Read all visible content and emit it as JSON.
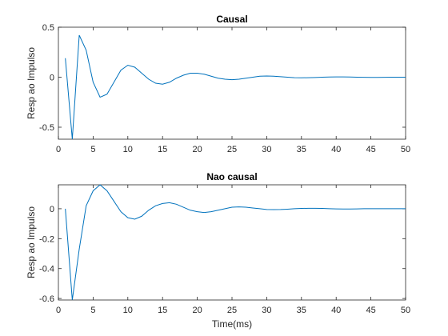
{
  "figure": {
    "background": "#ffffff",
    "line_color": "#0072BD",
    "axis_color": "#262626"
  },
  "chart_data": [
    {
      "type": "line",
      "title": "Causal",
      "xlabel": "",
      "ylabel": "Resp ao Impulso",
      "xlim": [
        0,
        50
      ],
      "ylim": [
        -0.62,
        0.5
      ],
      "xticks": [
        0,
        5,
        10,
        15,
        20,
        25,
        30,
        35,
        40,
        45,
        50
      ],
      "yticks": [
        -0.5,
        0,
        0.5
      ],
      "ytick_labels": [
        "-0.5",
        "0",
        "0.5"
      ],
      "grid": false,
      "series": [
        {
          "x": [
            1,
            2,
            3,
            4,
            5,
            6,
            7,
            8,
            9,
            10,
            11,
            12,
            13,
            14,
            15,
            16,
            17,
            18,
            19,
            20,
            21,
            22,
            23,
            24,
            25,
            26,
            27,
            28,
            29,
            30,
            31,
            32,
            33,
            34,
            35,
            36,
            37,
            38,
            39,
            40,
            41,
            42,
            43,
            44,
            45,
            46,
            47,
            48,
            49,
            50
          ],
          "y": [
            0.19,
            -0.62,
            0.42,
            0.27,
            -0.05,
            -0.2,
            -0.17,
            -0.05,
            0.07,
            0.12,
            0.1,
            0.04,
            -0.02,
            -0.06,
            -0.07,
            -0.05,
            -0.01,
            0.02,
            0.04,
            0.04,
            0.03,
            0.01,
            -0.01,
            -0.02,
            -0.025,
            -0.02,
            -0.01,
            0.0,
            0.01,
            0.012,
            0.01,
            0.005,
            0.0,
            -0.005,
            -0.006,
            -0.005,
            -0.003,
            0.0,
            0.002,
            0.003,
            0.003,
            0.002,
            0.0,
            -0.001,
            -0.002,
            -0.002,
            -0.001,
            0.0,
            0.0,
            0.0
          ]
        }
      ]
    },
    {
      "type": "line",
      "title": "Nao causal",
      "xlabel": "Time(ms)",
      "ylabel": "Resp ao Impulso",
      "xlim": [
        0,
        50
      ],
      "ylim": [
        -0.61,
        0.16
      ],
      "xticks": [
        0,
        5,
        10,
        15,
        20,
        25,
        30,
        35,
        40,
        45,
        50
      ],
      "yticks": [
        -0.6,
        -0.4,
        -0.2,
        0
      ],
      "ytick_labels": [
        "-0.6",
        "-0.4",
        "-0.2",
        "0"
      ],
      "grid": false,
      "series": [
        {
          "x": [
            1,
            2,
            3,
            4,
            5,
            6,
            7,
            8,
            9,
            10,
            11,
            12,
            13,
            14,
            15,
            16,
            17,
            18,
            19,
            20,
            21,
            22,
            23,
            24,
            25,
            26,
            27,
            28,
            29,
            30,
            31,
            32,
            33,
            34,
            35,
            36,
            37,
            38,
            39,
            40,
            41,
            42,
            43,
            44,
            45,
            46,
            47,
            48,
            49,
            50
          ],
          "y": [
            0.0,
            -0.61,
            -0.27,
            0.02,
            0.12,
            0.16,
            0.12,
            0.05,
            -0.02,
            -0.06,
            -0.07,
            -0.05,
            -0.01,
            0.02,
            0.035,
            0.04,
            0.03,
            0.01,
            -0.01,
            -0.02,
            -0.025,
            -0.02,
            -0.01,
            0.0,
            0.01,
            0.012,
            0.01,
            0.005,
            0.0,
            -0.005,
            -0.006,
            -0.005,
            -0.003,
            0.0,
            0.002,
            0.003,
            0.003,
            0.002,
            0.0,
            -0.001,
            -0.002,
            -0.002,
            -0.001,
            0.0,
            0.0,
            0.0,
            0.0,
            0.0,
            0.0,
            0.0
          ]
        }
      ]
    }
  ]
}
